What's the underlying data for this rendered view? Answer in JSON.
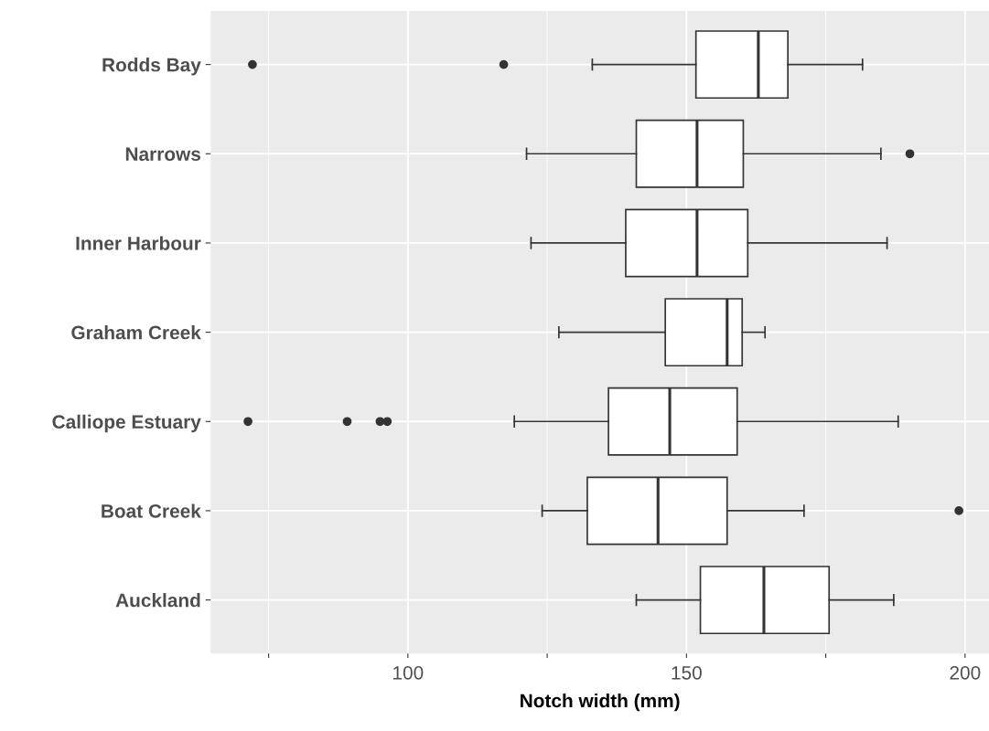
{
  "chart_data": {
    "type": "box",
    "orientation": "horizontal",
    "xlabel": "Notch width (mm)",
    "categories": [
      "Rodds Bay",
      "Narrows",
      "Inner Harbour",
      "Graham Creek",
      "Calliope Estuary",
      "Boat Creek",
      "Auckland"
    ],
    "boxes": [
      {
        "low": 133.1,
        "q1": 151.7,
        "median": 162.9,
        "q3": 168.2,
        "high": 181.6,
        "outliers": [
          72.1,
          117.2
        ]
      },
      {
        "low": 121.3,
        "q1": 141.0,
        "median": 151.9,
        "q3": 160.2,
        "high": 184.9,
        "outliers": [
          190.1
        ]
      },
      {
        "low": 122.1,
        "q1": 139.1,
        "median": 151.9,
        "q3": 161.0,
        "high": 186.0
      },
      {
        "low": 127.1,
        "q1": 146.2,
        "median": 157.3,
        "q3": 160.0,
        "high": 164.1
      },
      {
        "low": 119.1,
        "q1": 136.0,
        "median": 147.0,
        "q3": 159.1,
        "high": 188.0,
        "outliers": [
          71.3,
          89.1,
          95.0,
          96.3
        ]
      },
      {
        "low": 124.1,
        "q1": 132.2,
        "median": 144.9,
        "q3": 157.3,
        "high": 171.1,
        "outliers": [
          198.9
        ]
      },
      {
        "low": 141.0,
        "q1": 152.5,
        "median": 163.9,
        "q3": 175.6,
        "high": 187.2
      }
    ],
    "xlim": [
      64.6,
      204.3
    ],
    "xticks": [
      {
        "value": 75,
        "label": null
      },
      100,
      {
        "value": 125,
        "label": null
      },
      150,
      {
        "value": 175,
        "label": null
      },
      200
    ],
    "grid": true
  }
}
